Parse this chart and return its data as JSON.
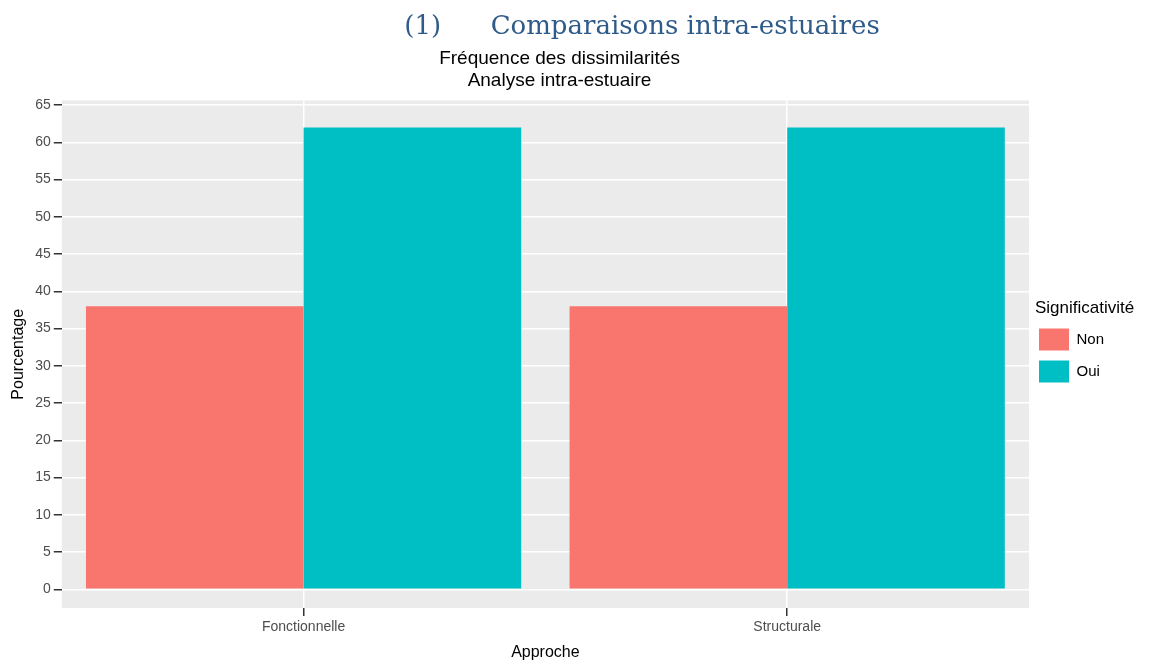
{
  "chart_data": {
    "type": "bar",
    "title": "Fréquence des dissimilarités",
    "subtitle": "Analyse intra-estuaire",
    "annotations": [
      "(1)      Comparaisons intra-estuaires"
    ],
    "xlabel": "Approche",
    "ylabel": "Pourcentage",
    "legend_title": "Significativité",
    "categories": [
      "Fonctionnelle",
      "Structurale"
    ],
    "series": [
      {
        "name": "Non",
        "color": "#f8766d",
        "values": [
          38,
          38
        ]
      },
      {
        "name": "Oui",
        "color": "#00bfc4",
        "values": [
          62,
          62
        ]
      }
    ],
    "ylim": [
      -2.5,
      65.6
    ],
    "yticks": [
      0,
      5,
      10,
      15,
      20,
      25,
      30,
      35,
      40,
      45,
      50,
      55,
      60,
      65
    ],
    "grid": true,
    "legend": "right"
  }
}
